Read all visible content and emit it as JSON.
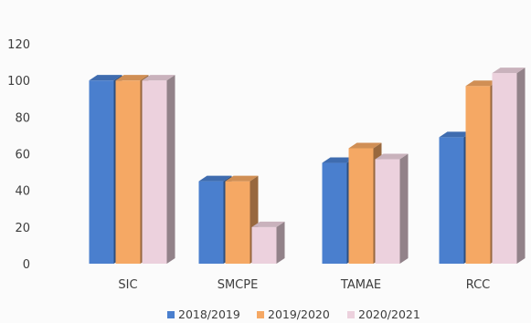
{
  "chart_data": {
    "type": "bar",
    "style": "3d-clustered-column",
    "title": "",
    "xlabel": "",
    "ylabel": "",
    "ylim": [
      0,
      120
    ],
    "yticks": [
      0,
      20,
      40,
      60,
      80,
      100,
      120
    ],
    "grid": false,
    "legend_position": "bottom",
    "categories": [
      "SIC",
      "SMCPE",
      "TAMAE",
      "RCC"
    ],
    "series": [
      {
        "name": "2018/2019",
        "color": "#4a7fce",
        "values": [
          100,
          45,
          55,
          69
        ]
      },
      {
        "name": "2019/2020",
        "color": "#f5a864",
        "values": [
          100,
          45,
          63,
          97
        ]
      },
      {
        "name": "2020/2021",
        "color": "#ecd1dd",
        "values": [
          100,
          20,
          57,
          104
        ]
      }
    ]
  }
}
